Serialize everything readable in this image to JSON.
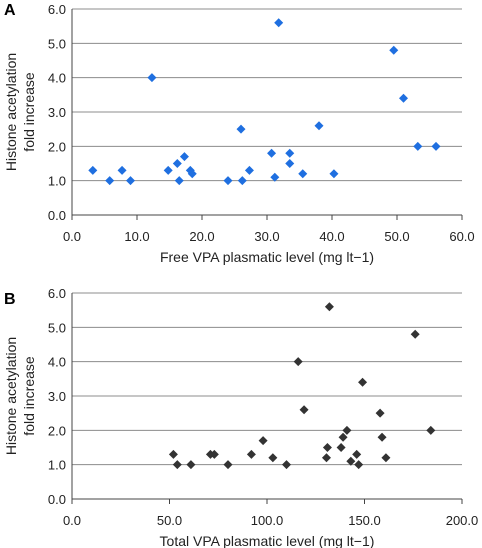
{
  "chart_data": [
    {
      "type": "scatter",
      "panel_label": "A",
      "xlabel": "Free VPA plasmatic level (mg lt−1)",
      "ylabel_line1": "Histone acetylation",
      "ylabel_line2": "fold increase",
      "xlim": [
        0,
        60
      ],
      "ylim": [
        0,
        6
      ],
      "x_ticks": [
        "0.0",
        "10.0",
        "20.0",
        "30.0",
        "40.0",
        "50.0",
        "60.0"
      ],
      "y_ticks": [
        "0.0",
        "1.0",
        "2.0",
        "3.0",
        "4.0",
        "5.0",
        "6.0"
      ],
      "grid": "horizontal",
      "marker_color": "#1f6fe0",
      "points": [
        {
          "x": 3.2,
          "y": 1.3
        },
        {
          "x": 5.8,
          "y": 1.0
        },
        {
          "x": 7.7,
          "y": 1.3
        },
        {
          "x": 9.0,
          "y": 1.0
        },
        {
          "x": 12.3,
          "y": 4.0
        },
        {
          "x": 14.8,
          "y": 1.3
        },
        {
          "x": 16.2,
          "y": 1.5
        },
        {
          "x": 16.5,
          "y": 1.0
        },
        {
          "x": 17.3,
          "y": 1.7
        },
        {
          "x": 18.2,
          "y": 1.3
        },
        {
          "x": 18.5,
          "y": 1.2
        },
        {
          "x": 24.0,
          "y": 1.0
        },
        {
          "x": 26.0,
          "y": 2.5
        },
        {
          "x": 26.2,
          "y": 1.0
        },
        {
          "x": 27.3,
          "y": 1.3
        },
        {
          "x": 30.7,
          "y": 1.8
        },
        {
          "x": 31.2,
          "y": 1.1
        },
        {
          "x": 31.8,
          "y": 5.6
        },
        {
          "x": 33.5,
          "y": 1.8
        },
        {
          "x": 33.5,
          "y": 1.5
        },
        {
          "x": 35.5,
          "y": 1.2
        },
        {
          "x": 38.0,
          "y": 2.6
        },
        {
          "x": 40.3,
          "y": 1.2
        },
        {
          "x": 49.5,
          "y": 4.8
        },
        {
          "x": 51.0,
          "y": 3.4
        },
        {
          "x": 53.2,
          "y": 2.0
        },
        {
          "x": 56.0,
          "y": 2.0
        }
      ]
    },
    {
      "type": "scatter",
      "panel_label": "B",
      "xlabel": "Total VPA plasmatic level (mg lt−1)",
      "ylabel_line1": "Histone acetylation",
      "ylabel_line2": "fold increase",
      "xlim": [
        0,
        200
      ],
      "ylim": [
        0,
        6
      ],
      "x_ticks": [
        "0.0",
        "50.0",
        "100.0",
        "150.0",
        "200.0"
      ],
      "y_ticks": [
        "0.0",
        "1.0",
        "2.0",
        "3.0",
        "4.0",
        "5.0",
        "6.0"
      ],
      "grid": "horizontal",
      "marker_color": "#333333",
      "points": [
        {
          "x": 52.0,
          "y": 1.3
        },
        {
          "x": 54.0,
          "y": 1.0
        },
        {
          "x": 61.0,
          "y": 1.0
        },
        {
          "x": 71.0,
          "y": 1.3
        },
        {
          "x": 73.0,
          "y": 1.3
        },
        {
          "x": 80.0,
          "y": 1.0
        },
        {
          "x": 92.0,
          "y": 1.3
        },
        {
          "x": 98.0,
          "y": 1.7
        },
        {
          "x": 103.0,
          "y": 1.2
        },
        {
          "x": 110.0,
          "y": 1.0
        },
        {
          "x": 116.0,
          "y": 4.0
        },
        {
          "x": 119.0,
          "y": 2.6
        },
        {
          "x": 130.5,
          "y": 1.2
        },
        {
          "x": 131.0,
          "y": 1.5
        },
        {
          "x": 132.0,
          "y": 5.6
        },
        {
          "x": 138.0,
          "y": 1.5
        },
        {
          "x": 139.0,
          "y": 1.8
        },
        {
          "x": 141.0,
          "y": 2.0
        },
        {
          "x": 143.0,
          "y": 1.1
        },
        {
          "x": 146.0,
          "y": 1.3
        },
        {
          "x": 147.0,
          "y": 1.0
        },
        {
          "x": 149.0,
          "y": 3.4
        },
        {
          "x": 158.0,
          "y": 2.5
        },
        {
          "x": 159.0,
          "y": 1.8
        },
        {
          "x": 161.0,
          "y": 1.2
        },
        {
          "x": 176.0,
          "y": 4.8
        },
        {
          "x": 184.0,
          "y": 2.0
        }
      ]
    }
  ]
}
